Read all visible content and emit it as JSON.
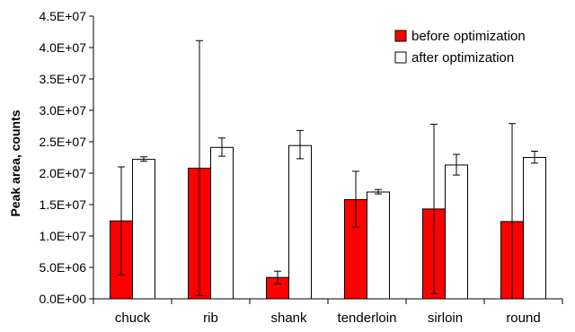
{
  "chart_data": {
    "type": "bar",
    "categories": [
      "chuck",
      "rib",
      "shank",
      "tenderloin",
      "sirloin",
      "round"
    ],
    "series": [
      {
        "name": "before optimization",
        "color": "#ff0000",
        "values": [
          12400000,
          20800000,
          3400000,
          15800000,
          14300000,
          12300000
        ],
        "error_low": [
          3800000,
          500000,
          2400000,
          11400000,
          800000,
          0
        ],
        "error_high": [
          21000000,
          41100000,
          4400000,
          20300000,
          27800000,
          27900000
        ]
      },
      {
        "name": "after optimization",
        "color": "#ffffff",
        "values": [
          22200000,
          24100000,
          24400000,
          17000000,
          21300000,
          22500000
        ],
        "error_low": [
          21900000,
          22700000,
          22300000,
          16700000,
          19700000,
          21600000
        ],
        "error_high": [
          22600000,
          25600000,
          26800000,
          17400000,
          23000000,
          23500000
        ]
      }
    ],
    "ylabel": "Peak area, counts",
    "xlabel": "",
    "ylim": [
      0,
      45000000
    ],
    "ytick_values": [
      0,
      5000000,
      10000000,
      15000000,
      20000000,
      25000000,
      30000000,
      35000000,
      40000000,
      45000000
    ],
    "ytick_labels": [
      "0.0E+00",
      "5.0E+06",
      "1.0E+07",
      "1.5E+07",
      "2.0E+07",
      "2.5E+07",
      "3.0E+07",
      "3.5E+07",
      "4.0E+07",
      "4.5E+07"
    ],
    "grid": false,
    "legend_position": "top-right"
  }
}
